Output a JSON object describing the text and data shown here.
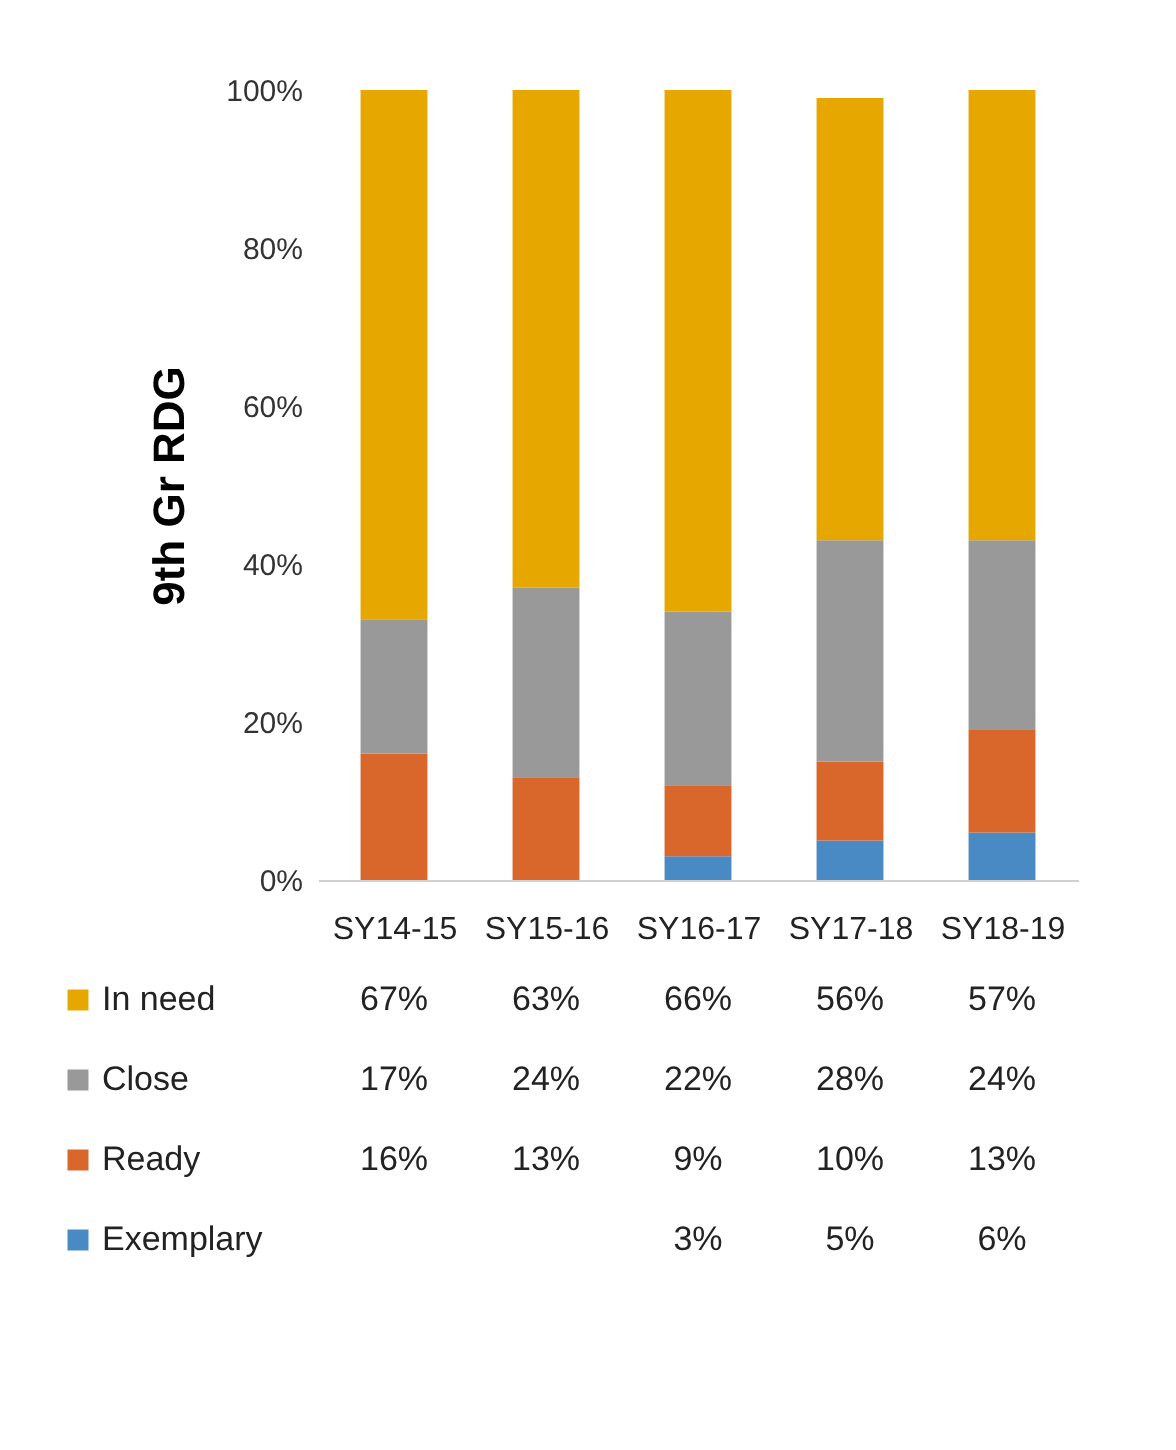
{
  "chart_data": {
    "type": "bar",
    "stacked": true,
    "ylabel": "9th Gr RDG",
    "categories": [
      "SY14-15",
      "SY15-16",
      "SY16-17",
      "SY17-18",
      "SY18-19"
    ],
    "ylim": [
      0,
      100
    ],
    "yticks": [
      {
        "value": 0,
        "label": "0%"
      },
      {
        "value": 20,
        "label": "20%"
      },
      {
        "value": 40,
        "label": "40%"
      },
      {
        "value": 60,
        "label": "60%"
      },
      {
        "value": 80,
        "label": "80%"
      },
      {
        "value": 100,
        "label": "100%"
      }
    ],
    "legend": "bottom",
    "series": [
      {
        "name": "Exemplary",
        "color": "#4a8ac4",
        "values": [
          null,
          null,
          3,
          5,
          6
        ],
        "value_labels": [
          null,
          null,
          "3%",
          "5%",
          "6%"
        ]
      },
      {
        "name": "Ready",
        "color": "#d9662b",
        "values": [
          16,
          13,
          9,
          10,
          13
        ],
        "value_labels": [
          "16%",
          "13%",
          "9%",
          "10%",
          "13%"
        ]
      },
      {
        "name": "Close",
        "color": "#999999",
        "values": [
          17,
          24,
          22,
          28,
          24
        ],
        "value_labels": [
          "17%",
          "24%",
          "22%",
          "28%",
          "24%"
        ]
      },
      {
        "name": "In need",
        "color": "#e6a800",
        "values": [
          67,
          63,
          66,
          56,
          57
        ],
        "value_labels": [
          "67%",
          "63%",
          "66%",
          "56%",
          "57%"
        ]
      }
    ]
  }
}
